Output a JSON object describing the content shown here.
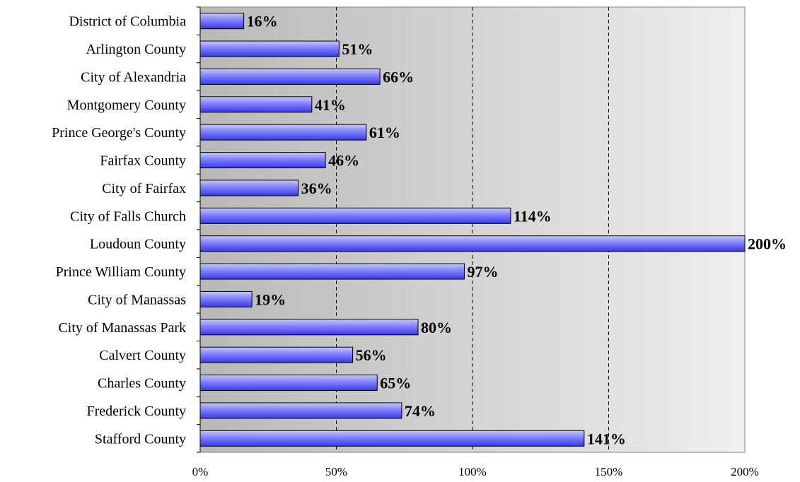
{
  "chart_data": {
    "type": "bar",
    "orientation": "horizontal",
    "categories": [
      "District of Columbia",
      "Arlington County",
      "City of Alexandria",
      "Montgomery County",
      "Prince George's County",
      "Fairfax County",
      "City of Fairfax",
      "City of Falls Church",
      "Loudoun County",
      "Prince William County",
      "City of Manassas",
      "City of Manassas Park",
      "Calvert County",
      "Charles County",
      "Frederick County",
      "Stafford County"
    ],
    "values": [
      16,
      51,
      66,
      41,
      61,
      46,
      36,
      114,
      200,
      97,
      19,
      80,
      56,
      65,
      74,
      141
    ],
    "data_labels": [
      "16%",
      "51%",
      "66%",
      "41%",
      "61%",
      "46%",
      "36%",
      "114%",
      "200%",
      "97%",
      "19%",
      "80%",
      "56%",
      "65%",
      "74%",
      "141%"
    ],
    "x_ticks": [
      0,
      50,
      100,
      150,
      200
    ],
    "x_tick_labels": [
      "0%",
      "50%",
      "100%",
      "150%",
      "200%"
    ],
    "xlim": [
      0,
      200
    ],
    "title": "",
    "xlabel": "",
    "ylabel": "",
    "grid": "vertical-dashed",
    "legend": "none",
    "colors": {
      "bar_light": "#c8c8ff",
      "bar_mid": "#8080ff",
      "bar_dark": "#3a3ae0",
      "bar_outline": "#000000",
      "plot_bg_left": "#b8b8b8",
      "plot_bg_right": "#efefef",
      "grid": "#000000"
    }
  }
}
